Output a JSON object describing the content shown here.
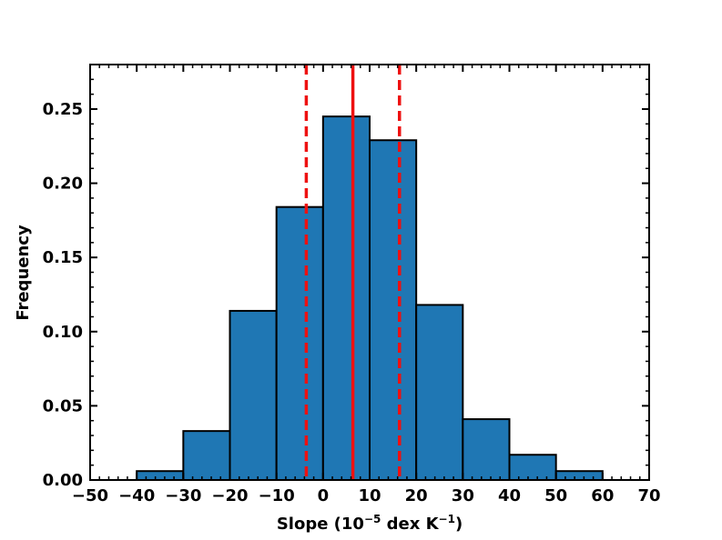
{
  "chart_data": {
    "type": "bar",
    "xlabel_main": "Slope (10",
    "xlabel_exp1": "−5",
    "xlabel_mid": " dex K",
    "xlabel_exp2": "−1",
    "xlabel_end": ")",
    "ylabel": "Frequency",
    "xlim": [
      -50,
      70
    ],
    "ylim": [
      0,
      0.28
    ],
    "x_ticks": [
      -50,
      -40,
      -30,
      -20,
      -10,
      0,
      10,
      20,
      30,
      40,
      50,
      60,
      70
    ],
    "x_tick_labels": [
      "−50",
      "−40",
      "−30",
      "−20",
      "−10",
      "0",
      "10",
      "20",
      "30",
      "40",
      "50",
      "60",
      "70"
    ],
    "y_ticks": [
      0,
      0.05,
      0.1,
      0.15,
      0.2,
      0.25
    ],
    "y_tick_labels": [
      "0.00",
      "0.05",
      "0.10",
      "0.15",
      "0.20",
      "0.25"
    ],
    "bins": [
      {
        "x0": -40,
        "x1": -30,
        "value": 0.006
      },
      {
        "x0": -30,
        "x1": -20,
        "value": 0.033
      },
      {
        "x0": -20,
        "x1": -10,
        "value": 0.114
      },
      {
        "x0": -10,
        "x1": 0,
        "value": 0.184
      },
      {
        "x0": 0,
        "x1": 10,
        "value": 0.245
      },
      {
        "x0": 10,
        "x1": 20,
        "value": 0.229
      },
      {
        "x0": 20,
        "x1": 30,
        "value": 0.118
      },
      {
        "x0": 30,
        "x1": 40,
        "value": 0.041
      },
      {
        "x0": 40,
        "x1": 50,
        "value": 0.017
      },
      {
        "x0": 50,
        "x1": 60,
        "value": 0.006
      }
    ],
    "median_line": 6.4,
    "bound_lines": [
      -3.6,
      16.4
    ],
    "bar_color": "#1f77b4",
    "line_color": "#ee1111",
    "grid": false
  }
}
